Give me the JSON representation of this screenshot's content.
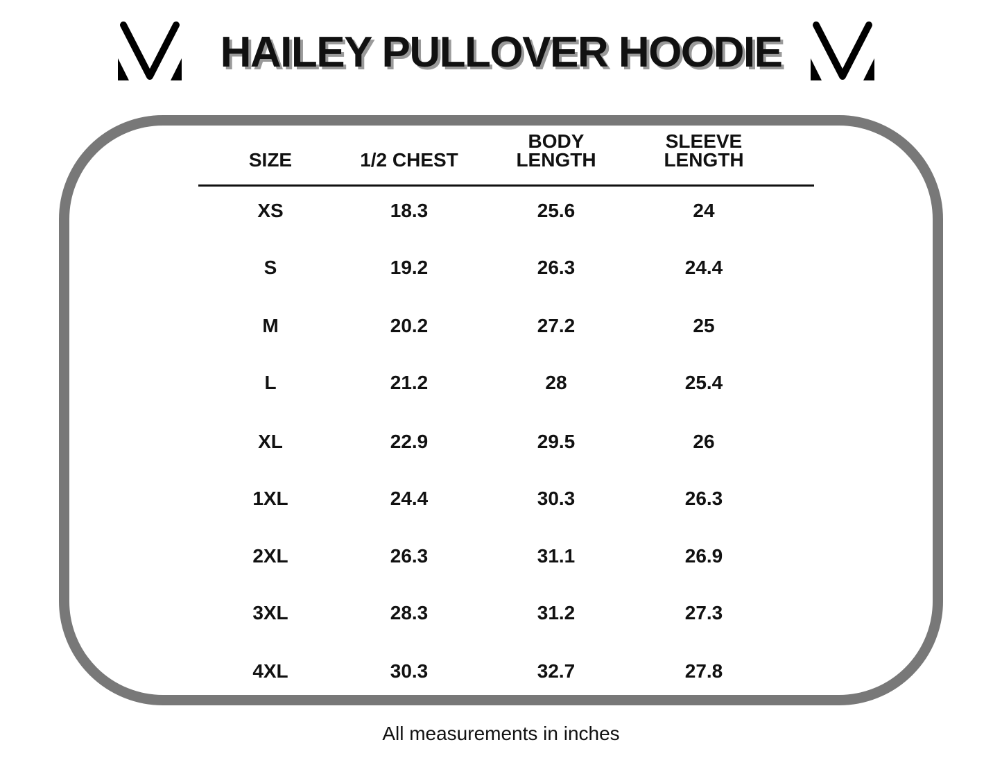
{
  "title": "HAILEY PULLOVER HOODIE",
  "columns": [
    {
      "line1": "",
      "line2": "SIZE"
    },
    {
      "line1": "",
      "line2": "1/2 CHEST"
    },
    {
      "line1": "BODY",
      "line2": "LENGTH"
    },
    {
      "line1": "SLEEVE",
      "line2": "LENGTH"
    }
  ],
  "rows": [
    [
      "XS",
      "18.3",
      "25.6",
      "24"
    ],
    [
      "S",
      "19.2",
      "26.3",
      "24.4"
    ],
    [
      "M",
      "20.2",
      "27.2",
      "25"
    ],
    [
      "L",
      "21.2",
      "28",
      "25.4"
    ],
    [
      "XL",
      "22.9",
      "29.5",
      "26"
    ],
    [
      "1XL",
      "24.4",
      "30.3",
      "26.3"
    ],
    [
      "2XL",
      "26.3",
      "31.1",
      "26.9"
    ],
    [
      "3XL",
      "28.3",
      "31.2",
      "27.3"
    ],
    [
      "4XL",
      "30.3",
      "32.7",
      "27.8"
    ]
  ],
  "footnote": "All measurements in inches",
  "colors": {
    "frame": "#787878",
    "text": "#111111",
    "title_shadow": "#9a9a9a"
  }
}
